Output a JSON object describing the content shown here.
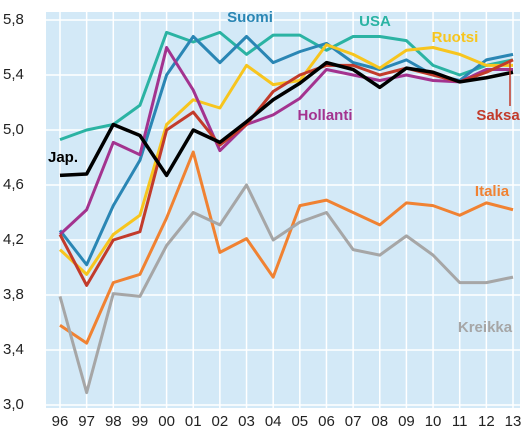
{
  "chart_data": {
    "type": "line",
    "categories": [
      "96",
      "97",
      "98",
      "99",
      "00",
      "01",
      "02",
      "03",
      "04",
      "05",
      "06",
      "07",
      "08",
      "09",
      "10",
      "11",
      "12",
      "13"
    ],
    "ylim": [
      3.0,
      5.8
    ],
    "yticks": [
      {
        "value": 3.0,
        "label": "3,0"
      },
      {
        "value": 3.4,
        "label": "3,4"
      },
      {
        "value": 3.8,
        "label": "3,8"
      },
      {
        "value": 4.2,
        "label": "4,2"
      },
      {
        "value": 4.6,
        "label": "4,6"
      },
      {
        "value": 5.0,
        "label": "5,0"
      },
      {
        "value": 5.4,
        "label": "5,4"
      },
      {
        "value": 5.8,
        "label": "5,8"
      }
    ],
    "grid": true,
    "series": [
      {
        "name": "USA",
        "color": "#2bb3a3",
        "values": [
          4.93,
          5.0,
          5.04,
          5.18,
          5.71,
          5.64,
          5.71,
          5.55,
          5.69,
          5.69,
          5.58,
          5.68,
          5.68,
          5.65,
          5.47,
          5.4,
          5.47,
          5.51
        ]
      },
      {
        "name": "Suomi",
        "color": "#2a86b4",
        "values": [
          4.27,
          4.02,
          4.45,
          4.78,
          5.4,
          5.68,
          5.49,
          5.68,
          5.49,
          5.57,
          5.63,
          5.49,
          5.44,
          5.51,
          5.4,
          5.36,
          5.51,
          5.55
        ]
      },
      {
        "name": "Ruotsi",
        "color": "#f7c51e",
        "values": [
          4.13,
          3.95,
          4.24,
          4.38,
          5.04,
          5.22,
          5.16,
          5.47,
          5.33,
          5.36,
          5.62,
          5.55,
          5.45,
          5.58,
          5.6,
          5.55,
          5.47,
          5.47
        ]
      },
      {
        "name": "Hollanti",
        "color": "#a3338f",
        "values": [
          4.24,
          4.42,
          4.91,
          4.82,
          5.6,
          5.29,
          4.85,
          5.04,
          5.11,
          5.23,
          5.44,
          5.4,
          5.36,
          5.4,
          5.36,
          5.35,
          5.44,
          5.44
        ]
      },
      {
        "name": "Saksa",
        "color": "#c23b2b",
        "values": [
          4.24,
          3.87,
          4.2,
          4.26,
          5.0,
          5.13,
          4.89,
          5.04,
          5.28,
          5.4,
          5.47,
          5.47,
          5.4,
          5.45,
          5.4,
          5.35,
          5.42,
          5.51
        ]
      },
      {
        "name": "Jap.",
        "color": "#000000",
        "values": [
          4.67,
          4.68,
          5.04,
          4.96,
          4.67,
          5.0,
          4.91,
          5.06,
          5.22,
          5.34,
          5.49,
          5.44,
          5.31,
          5.45,
          5.42,
          5.35,
          5.38,
          5.42
        ]
      },
      {
        "name": "Italia",
        "color": "#f08232",
        "values": [
          3.58,
          3.45,
          3.89,
          3.95,
          4.36,
          4.84,
          4.11,
          4.21,
          3.93,
          4.45,
          4.49,
          4.4,
          4.31,
          4.47,
          4.45,
          4.38,
          4.47,
          4.42
        ]
      },
      {
        "name": "Kreikka",
        "color": "#a6a6a6",
        "values": [
          3.79,
          3.09,
          3.81,
          3.79,
          4.16,
          4.4,
          4.31,
          4.6,
          4.2,
          4.33,
          4.4,
          4.13,
          4.09,
          4.23,
          4.09,
          3.89,
          3.89,
          3.93
        ]
      }
    ]
  }
}
